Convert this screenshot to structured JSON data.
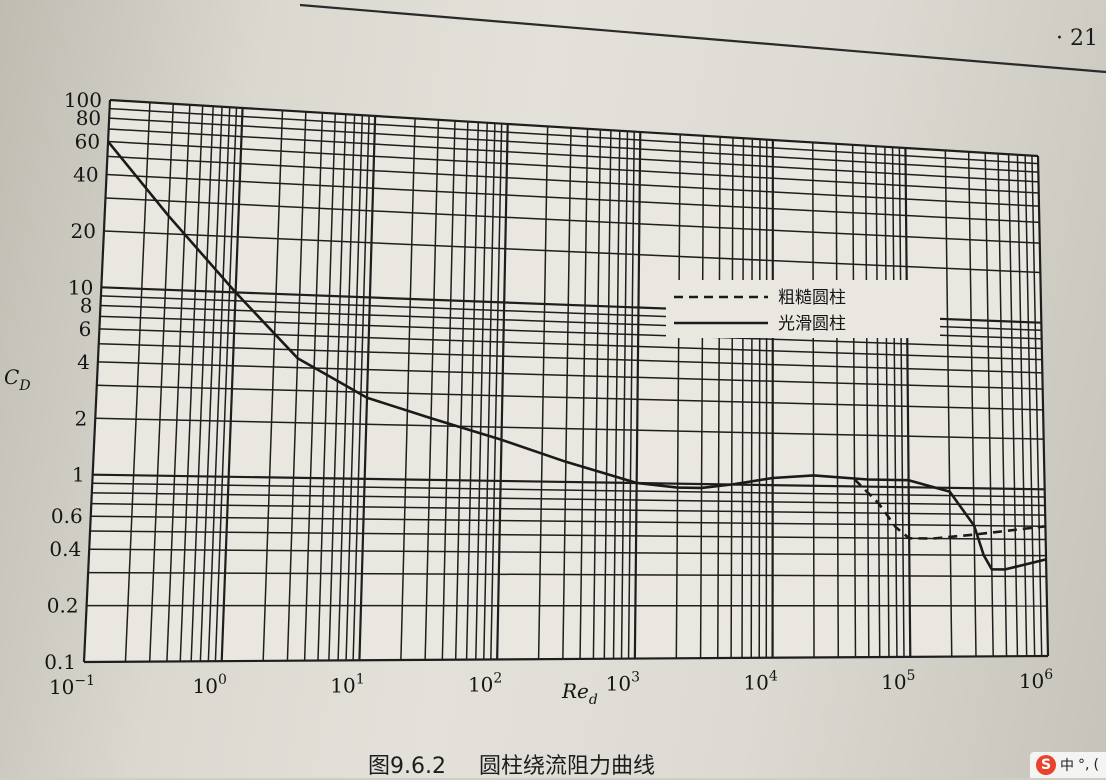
{
  "page": {
    "page_number": "· 21",
    "caption_prefix": "图9.6.2",
    "caption_title": "圆柱绕流阻力曲线"
  },
  "ime": {
    "logo": "S",
    "mode": "中",
    "punct": "°,",
    "more": "("
  },
  "chart_data": {
    "type": "line",
    "x_scale": "log",
    "y_scale": "log",
    "xlim": [
      0.1,
      1000000
    ],
    "ylim": [
      0.1,
      100
    ],
    "xlabel": "Re_d",
    "ylabel": "C_D",
    "grid": true,
    "legend_position": "right",
    "x_tick_values": [
      0.1,
      1,
      10,
      100,
      1000,
      10000,
      100000,
      1000000
    ],
    "x_tick_labels": [
      {
        "base": "10",
        "exp": "−1"
      },
      {
        "base": "10",
        "exp": "0"
      },
      {
        "base": "10",
        "exp": "1"
      },
      {
        "base": "10",
        "exp": "2"
      },
      {
        "base": "10",
        "exp": "3"
      },
      {
        "base": "10",
        "exp": "4"
      },
      {
        "base": "10",
        "exp": "5"
      },
      {
        "base": "10",
        "exp": "6"
      }
    ],
    "y_ticks": [
      {
        "value": 100,
        "label": "100"
      },
      {
        "value": 80,
        "label": "80"
      },
      {
        "value": 60,
        "label": "60"
      },
      {
        "value": 40,
        "label": "40"
      },
      {
        "value": 20,
        "label": "20"
      },
      {
        "value": 10,
        "label": "10"
      },
      {
        "value": 8,
        "label": "8"
      },
      {
        "value": 6,
        "label": "6"
      },
      {
        "value": 4,
        "label": "4"
      },
      {
        "value": 2,
        "label": "2"
      },
      {
        "value": 1,
        "label": "1"
      },
      {
        "value": 0.6,
        "label": "0.6"
      },
      {
        "value": 0.4,
        "label": "0.4"
      },
      {
        "value": 0.2,
        "label": "0.2"
      },
      {
        "value": 0.1,
        "label": "0.1"
      }
    ],
    "series": [
      {
        "name": "光滑圆柱",
        "style": "solid",
        "color": "#1a1a1a",
        "x": [
          0.1,
          0.3,
          1,
          3,
          10,
          30,
          100,
          300,
          1000,
          2000,
          3000,
          5000,
          10000,
          20000,
          50000,
          100000,
          200000,
          300000,
          350000,
          400000,
          500000,
          1000000
        ],
        "y": [
          60,
          25,
          10,
          4.5,
          2.8,
          2.2,
          1.7,
          1.3,
          1.0,
          0.95,
          0.95,
          1.0,
          1.1,
          1.15,
          1.1,
          1.1,
          0.95,
          0.6,
          0.4,
          0.33,
          0.33,
          0.38
        ]
      },
      {
        "name": "粗糙圆柱",
        "style": "dashed",
        "color": "#1a1a1a",
        "x": [
          40000,
          60000,
          80000,
          100000,
          150000,
          300000,
          1000000
        ],
        "y": [
          1.1,
          0.8,
          0.58,
          0.5,
          0.5,
          0.53,
          0.6
        ]
      }
    ]
  }
}
